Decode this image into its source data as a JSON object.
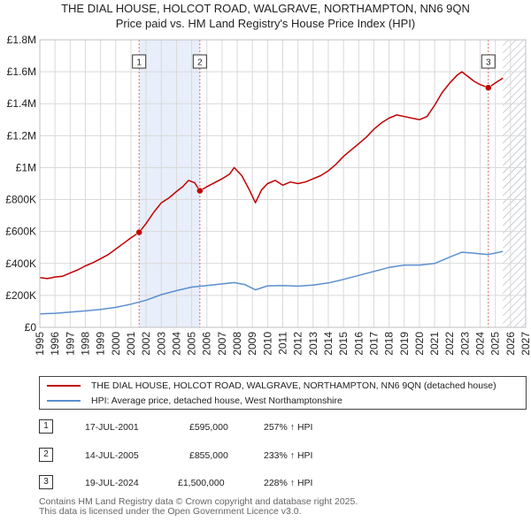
{
  "header": {
    "title": "THE DIAL HOUSE, HOLCOT ROAD, WALGRAVE, NORTHAMPTON, NN6 9QN",
    "subtitle": "Price paid vs. HM Land Registry's House Price Index (HPI)"
  },
  "colors": {
    "property_line": "#c00000",
    "hpi_line": "#5b8fcf",
    "sale_shade": "#e8eefa",
    "future_hatch": "#9aa3b5",
    "marker_line": "#e06666"
  },
  "chart_data": {
    "type": "line",
    "title": "THE DIAL HOUSE, HOLCOT ROAD, WALGRAVE, NORTHAMPTON, NN6 9QN",
    "xlim": [
      1995,
      2027
    ],
    "ylim": [
      0,
      1800000
    ],
    "x_ticks": [
      "1995",
      "1996",
      "1997",
      "1998",
      "1999",
      "2000",
      "2001",
      "2002",
      "2003",
      "2004",
      "2005",
      "2006",
      "2007",
      "2008",
      "2009",
      "2010",
      "2011",
      "2012",
      "2013",
      "2014",
      "2015",
      "2016",
      "2017",
      "2018",
      "2019",
      "2020",
      "2021",
      "2022",
      "2023",
      "2024",
      "2025",
      "2026",
      "2027"
    ],
    "y_ticks": [
      {
        "value": 0,
        "label": "£0"
      },
      {
        "value": 200000,
        "label": "£200K"
      },
      {
        "value": 400000,
        "label": "£400K"
      },
      {
        "value": 600000,
        "label": "£600K"
      },
      {
        "value": 800000,
        "label": "£800K"
      },
      {
        "value": 1000000,
        "label": "£1M"
      },
      {
        "value": 1200000,
        "label": "£1.2M"
      },
      {
        "value": 1400000,
        "label": "£1.4M"
      },
      {
        "value": 1600000,
        "label": "£1.6M"
      },
      {
        "value": 1800000,
        "label": "£1.8M"
      }
    ],
    "grid": true,
    "future_from": 2025.5,
    "shaded_region": [
      2001.54,
      2005.54
    ],
    "series": [
      {
        "name": "THE DIAL HOUSE, HOLCOT ROAD, WALGRAVE, NORTHAMPTON, NN6 9QN (detached house)",
        "color": "#c00000",
        "x": [
          1995.0,
          1995.5,
          1996.0,
          1996.5,
          1997.0,
          1997.5,
          1998.0,
          1998.5,
          1999.0,
          1999.5,
          2000.0,
          2000.5,
          2001.0,
          2001.54,
          2002.0,
          2002.5,
          2003.0,
          2003.5,
          2004.0,
          2004.4,
          2004.8,
          2005.2,
          2005.54,
          2006.0,
          2006.5,
          2007.0,
          2007.5,
          2007.8,
          2008.3,
          2008.8,
          2009.2,
          2009.6,
          2010.0,
          2010.5,
          2011.0,
          2011.5,
          2012.0,
          2012.5,
          2013.0,
          2013.5,
          2014.0,
          2014.5,
          2015.0,
          2015.5,
          2016.0,
          2016.5,
          2017.0,
          2017.5,
          2018.0,
          2018.5,
          2019.0,
          2019.5,
          2020.0,
          2020.5,
          2021.0,
          2021.5,
          2022.0,
          2022.5,
          2022.8,
          2023.2,
          2023.6,
          2024.0,
          2024.54,
          2025.0,
          2025.5
        ],
        "values": [
          312000,
          305000,
          315000,
          320000,
          340000,
          360000,
          385000,
          405000,
          430000,
          455000,
          490000,
          525000,
          560000,
          595000,
          650000,
          720000,
          780000,
          810000,
          850000,
          880000,
          920000,
          905000,
          855000,
          880000,
          905000,
          930000,
          960000,
          1000000,
          950000,
          860000,
          780000,
          860000,
          900000,
          920000,
          890000,
          910000,
          900000,
          910000,
          930000,
          950000,
          980000,
          1020000,
          1070000,
          1110000,
          1150000,
          1190000,
          1240000,
          1280000,
          1310000,
          1330000,
          1320000,
          1310000,
          1300000,
          1320000,
          1390000,
          1470000,
          1530000,
          1580000,
          1600000,
          1570000,
          1540000,
          1520000,
          1500000,
          1530000,
          1560000
        ]
      },
      {
        "name": "HPI: Average price, detached house, West Northamptonshire",
        "color": "#5b8fcf",
        "x": [
          1995.0,
          1996.0,
          1997.0,
          1998.0,
          1999.0,
          2000.0,
          2001.0,
          2002.0,
          2003.0,
          2004.0,
          2005.0,
          2006.0,
          2007.0,
          2007.8,
          2008.5,
          2009.2,
          2010.0,
          2011.0,
          2012.0,
          2013.0,
          2014.0,
          2015.0,
          2016.0,
          2017.0,
          2018.0,
          2019.0,
          2020.0,
          2021.0,
          2022.0,
          2022.8,
          2023.5,
          2024.0,
          2024.54,
          2025.0,
          2025.5
        ],
        "values": [
          85000,
          88000,
          95000,
          103000,
          112000,
          125000,
          145000,
          170000,
          205000,
          230000,
          252000,
          262000,
          272000,
          280000,
          268000,
          235000,
          260000,
          262000,
          258000,
          265000,
          278000,
          300000,
          325000,
          350000,
          375000,
          390000,
          390000,
          400000,
          440000,
          470000,
          465000,
          460000,
          455000,
          465000,
          475000
        ]
      }
    ],
    "sales": [
      {
        "id": "1",
        "x": 2001.54,
        "value": 595000
      },
      {
        "id": "2",
        "x": 2005.54,
        "value": 855000
      },
      {
        "id": "3",
        "x": 2024.54,
        "value": 1500000
      }
    ]
  },
  "legend": {
    "property_label": "THE DIAL HOUSE, HOLCOT ROAD, WALGRAVE, NORTHAMPTON, NN6 9QN (detached house)",
    "hpi_label": "HPI: Average price, detached house, West Northamptonshire"
  },
  "transactions": [
    {
      "id": "1",
      "date": "17-JUL-2001",
      "price": "£595,000",
      "hpi": "257% ↑ HPI"
    },
    {
      "id": "2",
      "date": "14-JUL-2005",
      "price": "£855,000",
      "hpi": "233% ↑ HPI"
    },
    {
      "id": "3",
      "date": "19-JUL-2024",
      "price": "£1,500,000",
      "hpi": "228% ↑ HPI"
    }
  ],
  "footer": {
    "line1": "Contains HM Land Registry data © Crown copyright and database right 2025.",
    "line2": "This data is licensed under the Open Government Licence v3.0."
  }
}
